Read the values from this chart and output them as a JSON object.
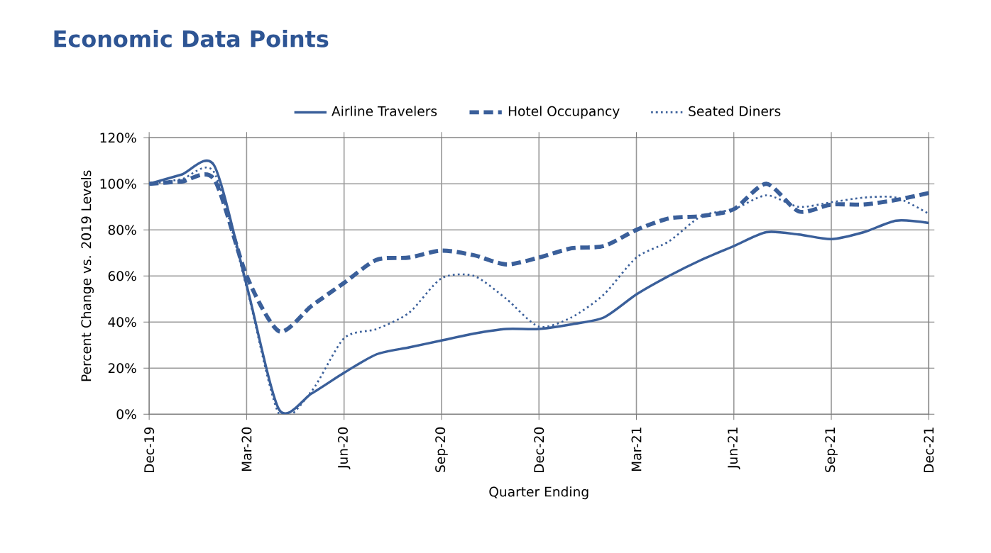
{
  "chart_data": {
    "type": "line",
    "title": "Economic Data Points",
    "xlabel": "Quarter Ending",
    "ylabel": "Percent Change vs. 2019 Levels",
    "x": [
      "2019-12",
      "2020-01",
      "2020-02",
      "2020-03",
      "2020-04",
      "2020-05",
      "2020-06",
      "2020-07",
      "2020-08",
      "2020-09",
      "2020-10",
      "2020-11",
      "2020-12",
      "2021-01",
      "2021-02",
      "2021-03",
      "2021-04",
      "2021-05",
      "2021-06",
      "2021-07",
      "2021-08",
      "2021-09",
      "2021-10",
      "2021-11",
      "2021-12"
    ],
    "series": [
      {
        "name": "Airline Travelers",
        "color": "#3a5f9a",
        "line_style": "solid",
        "values": [
          100,
          104,
          108,
          56,
          2,
          9,
          18,
          26,
          29,
          32,
          35,
          37,
          37,
          39,
          42,
          52,
          60,
          67,
          73,
          79,
          78,
          76,
          79,
          84,
          83
        ]
      },
      {
        "name": "Hotel Occupancy",
        "color": "#3a5f9a",
        "line_style": "dashed",
        "values": [
          100,
          101,
          102,
          60,
          36,
          47,
          57,
          67,
          68,
          71,
          69,
          65,
          68,
          72,
          73,
          80,
          85,
          86,
          89,
          100,
          88,
          91,
          91,
          93,
          96
        ]
      },
      {
        "name": "Seated Diners",
        "color": "#3a5f9a",
        "line_style": "dotted",
        "values": [
          100,
          102,
          105,
          55,
          0,
          10,
          33,
          37,
          44,
          59,
          60,
          50,
          38,
          42,
          52,
          68,
          75,
          86,
          89,
          95,
          90,
          92,
          94,
          94,
          87
        ]
      }
    ],
    "xlim": [
      "2019-12",
      "2021-12"
    ],
    "xticks": [
      {
        "value": "2019-12",
        "label": "Dec-19"
      },
      {
        "value": "2020-03",
        "label": "Mar-20"
      },
      {
        "value": "2020-06",
        "label": "Jun-20"
      },
      {
        "value": "2020-09",
        "label": "Sep-20"
      },
      {
        "value": "2020-12",
        "label": "Dec-20"
      },
      {
        "value": "2021-03",
        "label": "Mar-21"
      },
      {
        "value": "2021-06",
        "label": "Jun-21"
      },
      {
        "value": "2021-09",
        "label": "Sep-21"
      },
      {
        "value": "2021-12",
        "label": "Dec-21"
      }
    ],
    "ylim": [
      0,
      120
    ],
    "yticks": [
      {
        "value": 0,
        "label": "0%"
      },
      {
        "value": 20,
        "label": "20%"
      },
      {
        "value": 40,
        "label": "40%"
      },
      {
        "value": 60,
        "label": "60%"
      },
      {
        "value": 80,
        "label": "80%"
      },
      {
        "value": 100,
        "label": "100%"
      },
      {
        "value": 120,
        "label": "120%"
      }
    ],
    "grid": true,
    "legend": "top",
    "marker": "none"
  }
}
